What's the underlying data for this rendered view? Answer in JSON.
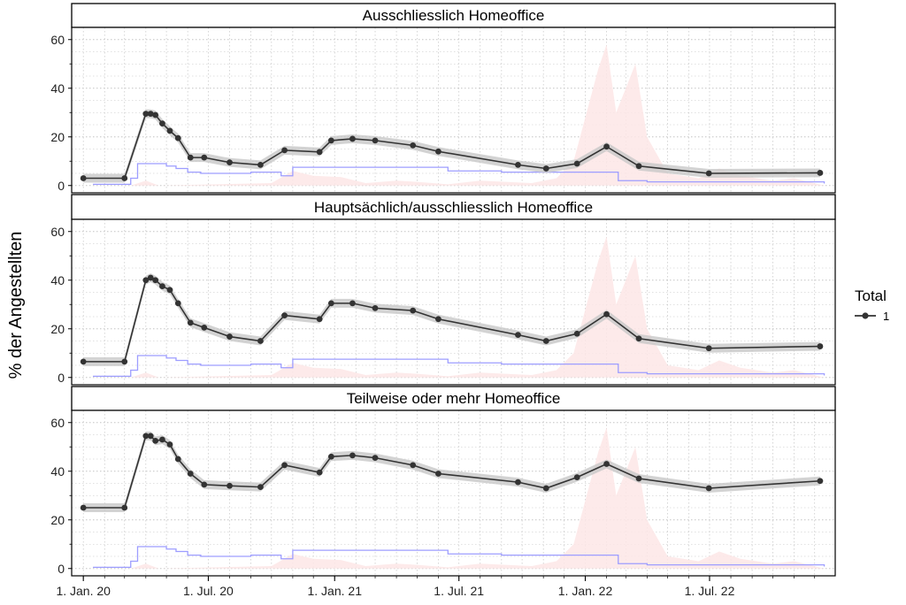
{
  "chart_data": {
    "type": "line",
    "ylabel": "% der Angestellten",
    "ylim": [
      -3,
      65
    ],
    "y_ticks": [
      "0",
      "20",
      "40",
      "60"
    ],
    "x_ticks": [
      "1. Jan. 20",
      "1. Jul. 20",
      "1. Jan. 21",
      "1. Jul. 21",
      "1. Jan. 22",
      "1. Jul. 22"
    ],
    "x_tick_dates": [
      "2020-01-01",
      "2020-07-01",
      "2021-01-01",
      "2021-07-01",
      "2022-01-01",
      "2022-07-01"
    ],
    "xlim": [
      "2019-12-15",
      "2022-12-31"
    ],
    "grid": "dotted",
    "legend": {
      "title": "Total",
      "position": "right",
      "entries": [
        {
          "label": "1",
          "color": "#333333"
        }
      ]
    },
    "colors": {
      "line": "#333333",
      "ribbon": "#c8c8c8",
      "stringency": "#9d9dff",
      "cases": "#fde6e6"
    },
    "panels": [
      {
        "title": "Ausschliesslich Homeoffice",
        "series": [
          {
            "name": "1",
            "points": [
              [
                "2020-01-01",
                3
              ],
              [
                "2020-03-01",
                3
              ],
              [
                "2020-04-01",
                29.5
              ],
              [
                "2020-04-08",
                29.5
              ],
              [
                "2020-04-15",
                29
              ],
              [
                "2020-04-25",
                25.5
              ],
              [
                "2020-05-06",
                22.5
              ],
              [
                "2020-05-18",
                19.5
              ],
              [
                "2020-06-05",
                11.5
              ],
              [
                "2020-06-25",
                11.5
              ],
              [
                "2020-08-01",
                9.5
              ],
              [
                "2020-09-15",
                8.5
              ],
              [
                "2020-10-20",
                14.5
              ],
              [
                "2020-12-10",
                13.8
              ],
              [
                "2020-12-27",
                18.5
              ],
              [
                "2021-01-27",
                19.2
              ],
              [
                "2021-03-01",
                18.5
              ],
              [
                "2021-04-25",
                16.5
              ],
              [
                "2021-06-01",
                14
              ],
              [
                "2021-09-25",
                8.5
              ],
              [
                "2021-11-05",
                7
              ],
              [
                "2021-12-20",
                9
              ],
              [
                "2022-02-01",
                16
              ],
              [
                "2022-03-20",
                8
              ],
              [
                "2022-06-30",
                5
              ],
              [
                "2022-12-09",
                5.2
              ]
            ]
          }
        ],
        "stringency": [
          [
            "2020-01-15",
            0.5
          ],
          [
            "2020-03-01",
            0.5
          ],
          [
            "2020-03-10",
            3
          ],
          [
            "2020-03-20",
            9
          ],
          [
            "2020-05-01",
            8
          ],
          [
            "2020-05-15",
            7
          ],
          [
            "2020-06-01",
            5.5
          ],
          [
            "2020-06-20",
            5
          ],
          [
            "2020-09-01",
            5.5
          ],
          [
            "2020-10-15",
            4
          ],
          [
            "2020-11-01",
            7.5
          ],
          [
            "2020-11-15",
            7.5
          ],
          [
            "2021-05-31",
            7.5
          ],
          [
            "2021-06-15",
            6
          ],
          [
            "2021-09-01",
            5.5
          ],
          [
            "2021-10-01",
            5.5
          ],
          [
            "2022-02-17",
            5.5
          ],
          [
            "2022-02-18",
            2
          ],
          [
            "2022-04-01",
            1.5
          ],
          [
            "2022-12-15",
            0.8
          ]
        ],
        "cases": [
          [
            "2020-03-10",
            0
          ],
          [
            "2020-04-01",
            2
          ],
          [
            "2020-04-20",
            0
          ],
          [
            "2020-10-01",
            1
          ],
          [
            "2020-11-01",
            6
          ],
          [
            "2020-12-01",
            4
          ],
          [
            "2021-01-10",
            3.5
          ],
          [
            "2021-02-15",
            1
          ],
          [
            "2021-04-01",
            2
          ],
          [
            "2021-05-01",
            1.5
          ],
          [
            "2021-06-15",
            0.5
          ],
          [
            "2021-08-01",
            2
          ],
          [
            "2021-10-15",
            1
          ],
          [
            "2021-11-20",
            3
          ],
          [
            "2021-12-15",
            10
          ],
          [
            "2022-01-20",
            48
          ],
          [
            "2022-02-01",
            58
          ],
          [
            "2022-02-15",
            30
          ],
          [
            "2022-03-01",
            40
          ],
          [
            "2022-03-15",
            50
          ],
          [
            "2022-04-01",
            20
          ],
          [
            "2022-05-01",
            5
          ],
          [
            "2022-06-15",
            3
          ],
          [
            "2022-07-15",
            7
          ],
          [
            "2022-08-15",
            4
          ],
          [
            "2022-10-01",
            2
          ],
          [
            "2022-11-01",
            3
          ],
          [
            "2022-12-15",
            0
          ]
        ]
      },
      {
        "title": "Hauptsächlich/ausschliesslich Homeoffice",
        "series": [
          {
            "name": "1",
            "points": [
              [
                "2020-01-01",
                6.5
              ],
              [
                "2020-03-01",
                6.5
              ],
              [
                "2020-04-01",
                40
              ],
              [
                "2020-04-08",
                41
              ],
              [
                "2020-04-15",
                40
              ],
              [
                "2020-04-25",
                37.5
              ],
              [
                "2020-05-06",
                36
              ],
              [
                "2020-05-18",
                30.5
              ],
              [
                "2020-06-05",
                22.5
              ],
              [
                "2020-06-25",
                20.5
              ],
              [
                "2020-08-01",
                16.8
              ],
              [
                "2020-09-15",
                15
              ],
              [
                "2020-10-20",
                25.5
              ],
              [
                "2020-12-10",
                24
              ],
              [
                "2020-12-27",
                30.5
              ],
              [
                "2021-01-27",
                30.5
              ],
              [
                "2021-03-01",
                28.5
              ],
              [
                "2021-04-25",
                27.5
              ],
              [
                "2021-06-01",
                24
              ],
              [
                "2021-09-25",
                17.5
              ],
              [
                "2021-11-05",
                15
              ],
              [
                "2021-12-20",
                18
              ],
              [
                "2022-02-01",
                26
              ],
              [
                "2022-03-20",
                16
              ],
              [
                "2022-06-30",
                12
              ],
              [
                "2022-12-09",
                12.8
              ]
            ]
          }
        ],
        "stringency": [
          [
            "2020-01-15",
            0.5
          ],
          [
            "2020-03-01",
            0.5
          ],
          [
            "2020-03-10",
            3
          ],
          [
            "2020-03-20",
            9
          ],
          [
            "2020-05-01",
            8
          ],
          [
            "2020-05-15",
            7
          ],
          [
            "2020-06-01",
            5.5
          ],
          [
            "2020-06-20",
            5
          ],
          [
            "2020-09-01",
            5.5
          ],
          [
            "2020-10-15",
            4
          ],
          [
            "2020-11-01",
            7.5
          ],
          [
            "2020-11-15",
            7.5
          ],
          [
            "2021-05-31",
            7.5
          ],
          [
            "2021-06-15",
            6
          ],
          [
            "2021-09-01",
            5.5
          ],
          [
            "2021-10-01",
            5.5
          ],
          [
            "2022-02-17",
            5.5
          ],
          [
            "2022-02-18",
            2
          ],
          [
            "2022-04-01",
            1.5
          ],
          [
            "2022-12-15",
            0.8
          ]
        ],
        "cases": [
          [
            "2020-03-10",
            0
          ],
          [
            "2020-04-01",
            2
          ],
          [
            "2020-04-20",
            0
          ],
          [
            "2020-10-01",
            1
          ],
          [
            "2020-11-01",
            6
          ],
          [
            "2020-12-01",
            4
          ],
          [
            "2021-01-10",
            3.5
          ],
          [
            "2021-02-15",
            1
          ],
          [
            "2021-04-01",
            2
          ],
          [
            "2021-05-01",
            1.5
          ],
          [
            "2021-06-15",
            0.5
          ],
          [
            "2021-08-01",
            2
          ],
          [
            "2021-10-15",
            1
          ],
          [
            "2021-11-20",
            3
          ],
          [
            "2021-12-15",
            10
          ],
          [
            "2022-01-20",
            48
          ],
          [
            "2022-02-01",
            58
          ],
          [
            "2022-02-15",
            30
          ],
          [
            "2022-03-01",
            40
          ],
          [
            "2022-03-15",
            50
          ],
          [
            "2022-04-01",
            20
          ],
          [
            "2022-05-01",
            5
          ],
          [
            "2022-06-15",
            3
          ],
          [
            "2022-07-15",
            7
          ],
          [
            "2022-08-15",
            4
          ],
          [
            "2022-10-01",
            2
          ],
          [
            "2022-11-01",
            3
          ],
          [
            "2022-12-15",
            0
          ]
        ]
      },
      {
        "title": "Teilweise oder mehr Homeoffice",
        "series": [
          {
            "name": "1",
            "points": [
              [
                "2020-01-01",
                25
              ],
              [
                "2020-03-01",
                25
              ],
              [
                "2020-04-01",
                54.5
              ],
              [
                "2020-04-08",
                54.5
              ],
              [
                "2020-04-15",
                52.5
              ],
              [
                "2020-04-25",
                53
              ],
              [
                "2020-05-06",
                51
              ],
              [
                "2020-05-18",
                45
              ],
              [
                "2020-06-05",
                39
              ],
              [
                "2020-06-25",
                34.5
              ],
              [
                "2020-08-01",
                34
              ],
              [
                "2020-09-15",
                33.5
              ],
              [
                "2020-10-20",
                42.5
              ],
              [
                "2020-12-10",
                39.5
              ],
              [
                "2020-12-27",
                46
              ],
              [
                "2021-01-27",
                46.5
              ],
              [
                "2021-03-01",
                45.5
              ],
              [
                "2021-04-25",
                42.5
              ],
              [
                "2021-06-01",
                39
              ],
              [
                "2021-09-25",
                35.5
              ],
              [
                "2021-11-05",
                33
              ],
              [
                "2021-12-20",
                37.5
              ],
              [
                "2022-02-01",
                43
              ],
              [
                "2022-03-20",
                37
              ],
              [
                "2022-06-30",
                33
              ],
              [
                "2022-12-09",
                36
              ]
            ]
          }
        ],
        "stringency": [
          [
            "2020-01-15",
            0.5
          ],
          [
            "2020-03-01",
            0.5
          ],
          [
            "2020-03-10",
            3
          ],
          [
            "2020-03-20",
            9
          ],
          [
            "2020-05-01",
            8
          ],
          [
            "2020-05-15",
            7
          ],
          [
            "2020-06-01",
            5.5
          ],
          [
            "2020-06-20",
            5
          ],
          [
            "2020-09-01",
            5.5
          ],
          [
            "2020-10-15",
            4
          ],
          [
            "2020-11-01",
            7.5
          ],
          [
            "2020-11-15",
            7.5
          ],
          [
            "2021-05-31",
            7.5
          ],
          [
            "2021-06-15",
            6
          ],
          [
            "2021-09-01",
            5.5
          ],
          [
            "2021-10-01",
            5.5
          ],
          [
            "2022-02-17",
            5.5
          ],
          [
            "2022-02-18",
            2
          ],
          [
            "2022-04-01",
            1.5
          ],
          [
            "2022-12-15",
            0.8
          ]
        ],
        "cases": [
          [
            "2020-03-10",
            0
          ],
          [
            "2020-04-01",
            2
          ],
          [
            "2020-04-20",
            0
          ],
          [
            "2020-10-01",
            1
          ],
          [
            "2020-11-01",
            6
          ],
          [
            "2020-12-01",
            4
          ],
          [
            "2021-01-10",
            3.5
          ],
          [
            "2021-02-15",
            1
          ],
          [
            "2021-04-01",
            2
          ],
          [
            "2021-05-01",
            1.5
          ],
          [
            "2021-06-15",
            0.5
          ],
          [
            "2021-08-01",
            2
          ],
          [
            "2021-10-15",
            1
          ],
          [
            "2021-11-20",
            3
          ],
          [
            "2021-12-15",
            10
          ],
          [
            "2022-01-20",
            48
          ],
          [
            "2022-02-01",
            58
          ],
          [
            "2022-02-15",
            30
          ],
          [
            "2022-03-01",
            40
          ],
          [
            "2022-03-15",
            50
          ],
          [
            "2022-04-01",
            20
          ],
          [
            "2022-05-01",
            5
          ],
          [
            "2022-06-15",
            3
          ],
          [
            "2022-07-15",
            7
          ],
          [
            "2022-08-15",
            4
          ],
          [
            "2022-10-01",
            2
          ],
          [
            "2022-11-01",
            3
          ],
          [
            "2022-12-15",
            0
          ]
        ]
      }
    ]
  }
}
